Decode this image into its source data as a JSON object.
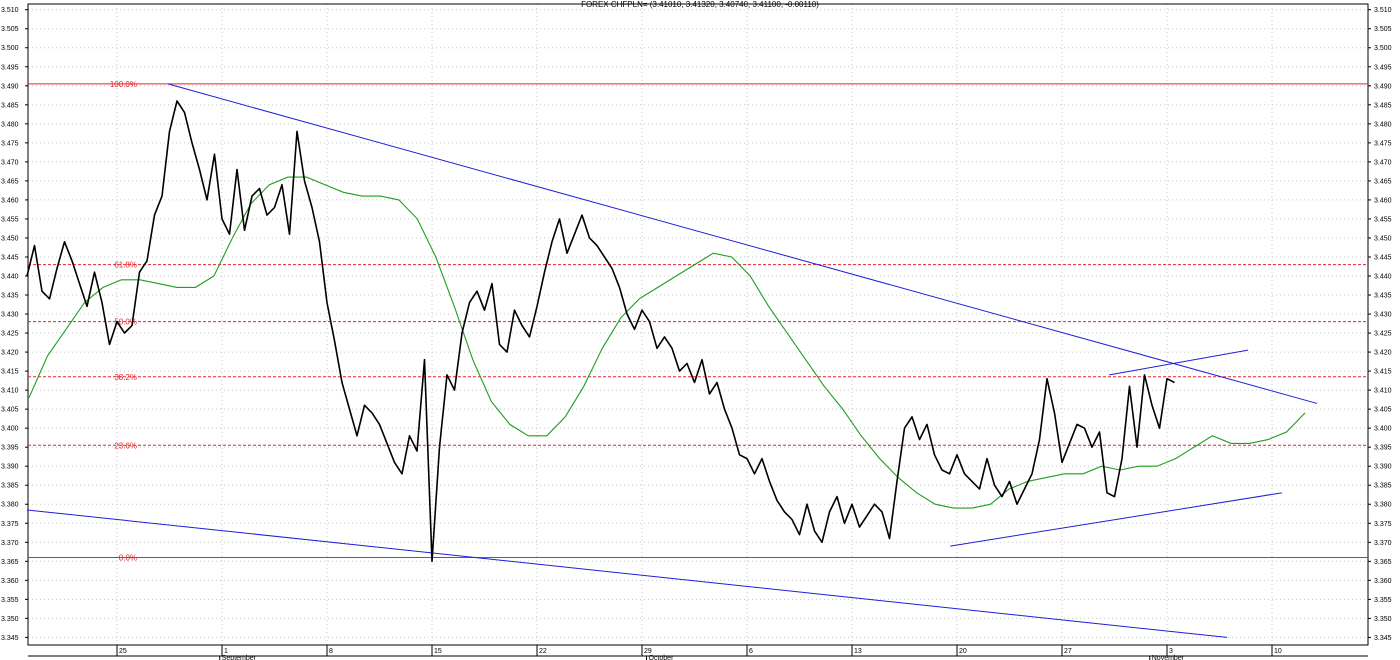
{
  "chart_data": {
    "type": "line",
    "title": "FOREX CHFPLN= (3.41010, 3.41320, 3.40740, 3.41100, -0.00110)",
    "ylim": [
      3.343,
      3.5115
    ],
    "y_ticks": [
      3.345,
      3.35,
      3.355,
      3.36,
      3.365,
      3.37,
      3.375,
      3.38,
      3.385,
      3.39,
      3.395,
      3.4,
      3.405,
      3.41,
      3.415,
      3.42,
      3.425,
      3.43,
      3.435,
      3.44,
      3.445,
      3.45,
      3.455,
      3.46,
      3.465,
      3.47,
      3.475,
      3.48,
      3.485,
      3.49,
      3.495,
      3.5,
      3.505,
      3.51
    ],
    "x_day_ticks": [
      {
        "label": "25",
        "idx": 12
      },
      {
        "label": "1",
        "idx": 26
      },
      {
        "label": "8",
        "idx": 40
      },
      {
        "label": "15",
        "idx": 54
      },
      {
        "label": "22",
        "idx": 68
      },
      {
        "label": "29",
        "idx": 82
      },
      {
        "label": "6",
        "idx": 96
      },
      {
        "label": "13",
        "idx": 110
      },
      {
        "label": "20",
        "idx": 124
      },
      {
        "label": "27",
        "idx": 138
      },
      {
        "label": "3",
        "idx": 152
      },
      {
        "label": "10",
        "idx": 166
      }
    ],
    "x_month_labels": [
      {
        "label": "September",
        "idx": 25.7
      },
      {
        "label": "October",
        "idx": 82.6
      },
      {
        "label": "November",
        "idx": 149.7
      }
    ],
    "fibonacci_levels": [
      {
        "label": "100.0%",
        "value": 3.4905,
        "style": "solid"
      },
      {
        "label": "61.8%",
        "value": 3.443,
        "style": "dashed"
      },
      {
        "label": "50.0%",
        "value": 3.428,
        "style": "dashed"
      },
      {
        "label": "38.2%",
        "value": 3.4135,
        "style": "dashed"
      },
      {
        "label": "23.6%",
        "value": 3.3955,
        "style": "dashed"
      },
      {
        "label": "0.0%",
        "value": 3.366,
        "style": "solid"
      }
    ],
    "trendlines": [
      {
        "from": {
          "idx": 18.8,
          "y": 3.4905
        },
        "to": {
          "idx": 172,
          "y": 3.4065
        }
      },
      {
        "from": {
          "idx": 0,
          "y": 3.3785
        },
        "to": {
          "idx": 160,
          "y": 3.345
        }
      },
      {
        "from": {
          "idx": 123.1,
          "y": 3.369
        },
        "to": {
          "idx": 167.3,
          "y": 3.383
        }
      },
      {
        "from": {
          "idx": 144.3,
          "y": 3.414
        },
        "to": {
          "idx": 162.8,
          "y": 3.4205
        }
      }
    ],
    "series": [
      {
        "color": "#000000",
        "values": [
          3.44,
          3.448,
          3.436,
          3.434,
          3.442,
          3.449,
          3.444,
          3.438,
          3.432,
          3.441,
          3.433,
          3.422,
          3.428,
          3.425,
          3.427,
          3.441,
          3.444,
          3.456,
          3.461,
          3.478,
          3.486,
          3.483,
          3.475,
          3.468,
          3.46,
          3.472,
          3.455,
          3.451,
          3.468,
          3.452,
          3.461,
          3.463,
          3.456,
          3.458,
          3.464,
          3.451,
          3.478,
          3.465,
          3.458,
          3.449,
          3.433,
          3.423,
          3.412,
          3.405,
          3.398,
          3.406,
          3.404,
          3.401,
          3.396,
          3.391,
          3.388,
          3.398,
          3.394,
          3.418,
          3.365,
          3.395,
          3.414,
          3.41,
          3.425,
          3.433,
          3.436,
          3.431,
          3.438,
          3.422,
          3.42,
          3.431,
          3.427,
          3.424,
          3.432,
          3.441,
          3.449,
          3.455,
          3.446,
          3.451,
          3.456,
          3.45,
          3.448,
          3.445,
          3.442,
          3.437,
          3.43,
          3.426,
          3.431,
          3.428,
          3.421,
          3.424,
          3.421,
          3.415,
          3.417,
          3.412,
          3.418,
          3.409,
          3.412,
          3.405,
          3.4,
          3.393,
          3.392,
          3.388,
          3.392,
          3.386,
          3.381,
          3.378,
          3.376,
          3.372,
          3.38,
          3.373,
          3.37,
          3.378,
          3.382,
          3.375,
          3.38,
          3.374,
          3.377,
          3.38,
          3.378,
          3.371,
          3.386,
          3.4,
          3.403,
          3.397,
          3.401,
          3.393,
          3.389,
          3.388,
          3.393,
          3.388,
          3.386,
          3.384,
          3.392,
          3.385,
          3.382,
          3.386,
          3.38,
          3.384,
          3.388,
          3.397,
          3.413,
          3.404,
          3.391,
          3.396,
          3.401,
          3.4,
          3.395,
          3.399,
          3.383,
          3.382,
          3.392,
          3.411,
          3.395,
          3.414,
          3.406,
          3.4,
          3.413,
          3.412
        ]
      },
      {
        "color": "#1f9e1f",
        "values": [
          3.408,
          3.419,
          3.426,
          3.433,
          3.437,
          3.439,
          3.439,
          3.438,
          3.437,
          3.437,
          3.44,
          3.45,
          3.459,
          3.464,
          3.466,
          3.466,
          3.464,
          3.462,
          3.461,
          3.461,
          3.46,
          3.455,
          3.445,
          3.432,
          3.418,
          3.407,
          3.401,
          3.398,
          3.398,
          3.403,
          3.411,
          3.421,
          3.429,
          3.434,
          3.437,
          3.44,
          3.443,
          3.446,
          3.445,
          3.44,
          3.432,
          3.425,
          3.418,
          3.411,
          3.405,
          3.398,
          3.392,
          3.387,
          3.383,
          3.38,
          3.379,
          3.379,
          3.38,
          3.384,
          3.386,
          3.387,
          3.388,
          3.388,
          3.39,
          3.389,
          3.39,
          3.39,
          3.392,
          3.395,
          3.398,
          3.396,
          3.396,
          3.397,
          3.399,
          3.404
        ]
      }
    ]
  }
}
